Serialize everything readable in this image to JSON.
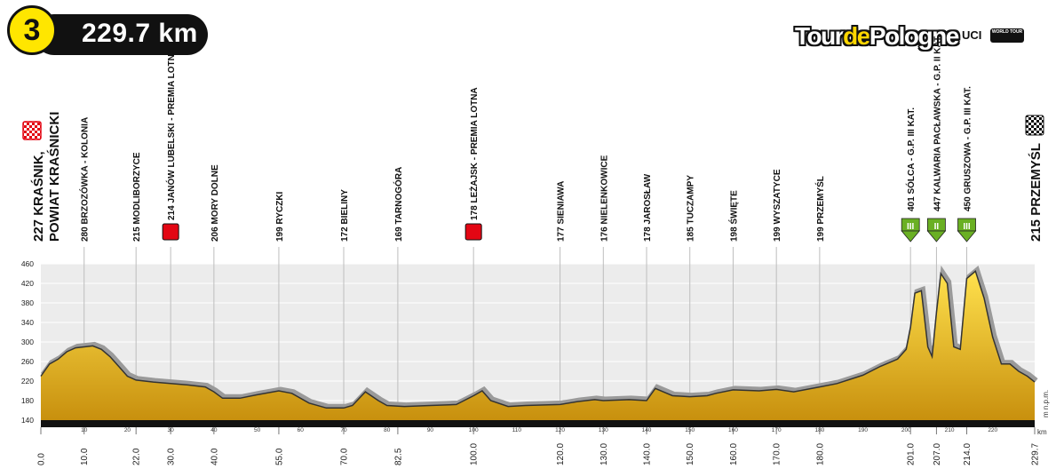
{
  "stage": {
    "number": "3",
    "distance": "229.7 km"
  },
  "brand": {
    "logo_prefix": "Tour",
    "logo_mid": "de",
    "logo_suffix": "Pologne",
    "uci": "UCI",
    "world_tour": "WORLD TOUR"
  },
  "colors": {
    "fill_top": "#ffe14d",
    "fill_bottom": "#c8900e",
    "sprint": "#e30613",
    "climb": "#6ab023",
    "band": "#111111"
  },
  "start_label": [
    "227 KRAŚNIK,",
    "POWIAT KRAŚNICKI"
  ],
  "finish_label": "215 PRZEMYŚL",
  "unit_label": "m n.p.m.",
  "km_unit": "km",
  "chart_data": {
    "type": "area",
    "xlabel": "km",
    "ylabel": "m n.p.m.",
    "xlim": [
      0,
      229.7
    ],
    "ylim": [
      140,
      460
    ],
    "y_ticks": [
      140,
      180,
      220,
      260,
      300,
      340,
      380,
      420,
      460
    ],
    "x_ticks_minor": [
      10,
      20,
      30,
      40,
      50,
      60,
      70,
      80,
      90,
      100,
      110,
      120,
      130,
      140,
      150,
      160,
      170,
      180,
      190,
      200,
      210,
      220
    ],
    "x_waypoints": [
      "0.0",
      "10.0",
      "22.0",
      "30.0",
      "40.0",
      "55.0",
      "70.0",
      "82.5",
      "100.0",
      "120.0",
      "130.0",
      "140.0",
      "150.0",
      "160.0",
      "170.0",
      "180.0",
      "201.0",
      "207.0",
      "214.0",
      "229.7"
    ],
    "profile": {
      "x": [
        0,
        2,
        4,
        6,
        8,
        10,
        12,
        14,
        16,
        18,
        20,
        22,
        26,
        30,
        34,
        38,
        40,
        42,
        46,
        50,
        55,
        58,
        62,
        66,
        70,
        72,
        75,
        78,
        80,
        84,
        90,
        96,
        100,
        102,
        104,
        108,
        112,
        120,
        124,
        128,
        130,
        136,
        140,
        142,
        146,
        150,
        154,
        156,
        160,
        166,
        170,
        174,
        180,
        184,
        190,
        194,
        198,
        200,
        201,
        202,
        203.5,
        205,
        206,
        207,
        208,
        209.5,
        211,
        212.5,
        214,
        216,
        218,
        220,
        222,
        224,
        226,
        228,
        229.7
      ],
      "y": [
        230,
        255,
        265,
        280,
        288,
        290,
        292,
        285,
        270,
        250,
        230,
        222,
        218,
        215,
        212,
        208,
        198,
        185,
        185,
        192,
        200,
        195,
        175,
        165,
        165,
        170,
        198,
        180,
        170,
        168,
        170,
        172,
        190,
        200,
        180,
        168,
        170,
        172,
        178,
        182,
        180,
        182,
        180,
        205,
        190,
        188,
        190,
        195,
        202,
        200,
        203,
        198,
        208,
        215,
        232,
        250,
        265,
        285,
        330,
        400,
        405,
        290,
        270,
        360,
        440,
        420,
        290,
        285,
        430,
        445,
        390,
        310,
        255,
        255,
        240,
        230,
        218
      ]
    },
    "waypoints": [
      {
        "km": 10.0,
        "label": "280 BRZOZÓWKA - KOLONIA"
      },
      {
        "km": 22.0,
        "label": "215 MODLIBORZYCE"
      },
      {
        "km": 30.0,
        "label": "214 JANÓW LUBELSKI - PREMIA LOTNA",
        "sprint": true
      },
      {
        "km": 40.0,
        "label": "206 MORY DOLNE"
      },
      {
        "km": 55.0,
        "label": "199 RYCZKI"
      },
      {
        "km": 70.0,
        "label": "172 BIELINY"
      },
      {
        "km": 82.5,
        "label": "169 TARNOGÓRA"
      },
      {
        "km": 100.0,
        "label": "178 LEŻAJSK - PREMIA LOTNA",
        "sprint": true
      },
      {
        "km": 120.0,
        "label": "177 SIENIAWA"
      },
      {
        "km": 130.0,
        "label": "176 NIELENKOWICE"
      },
      {
        "km": 140.0,
        "label": "178 JAROSŁAW"
      },
      {
        "km": 150.0,
        "label": "185 TUCZAMPY"
      },
      {
        "km": 160.0,
        "label": "198 ŚWIĘTE"
      },
      {
        "km": 170.0,
        "label": "199 WYSZATYCE"
      },
      {
        "km": 180.0,
        "label": "199 PRZEMYŚL"
      },
      {
        "km": 201.0,
        "label": "401 SÓLCA - G.P. III KAT.",
        "climb": "III"
      },
      {
        "km": 207.0,
        "label": "447 KALWARIA PACŁAWSKA - G.P. II KAT.",
        "climb": "II"
      },
      {
        "km": 214.0,
        "label": "450 GRUSZOWA - G.P. III KAT.",
        "climb": "III"
      }
    ]
  }
}
